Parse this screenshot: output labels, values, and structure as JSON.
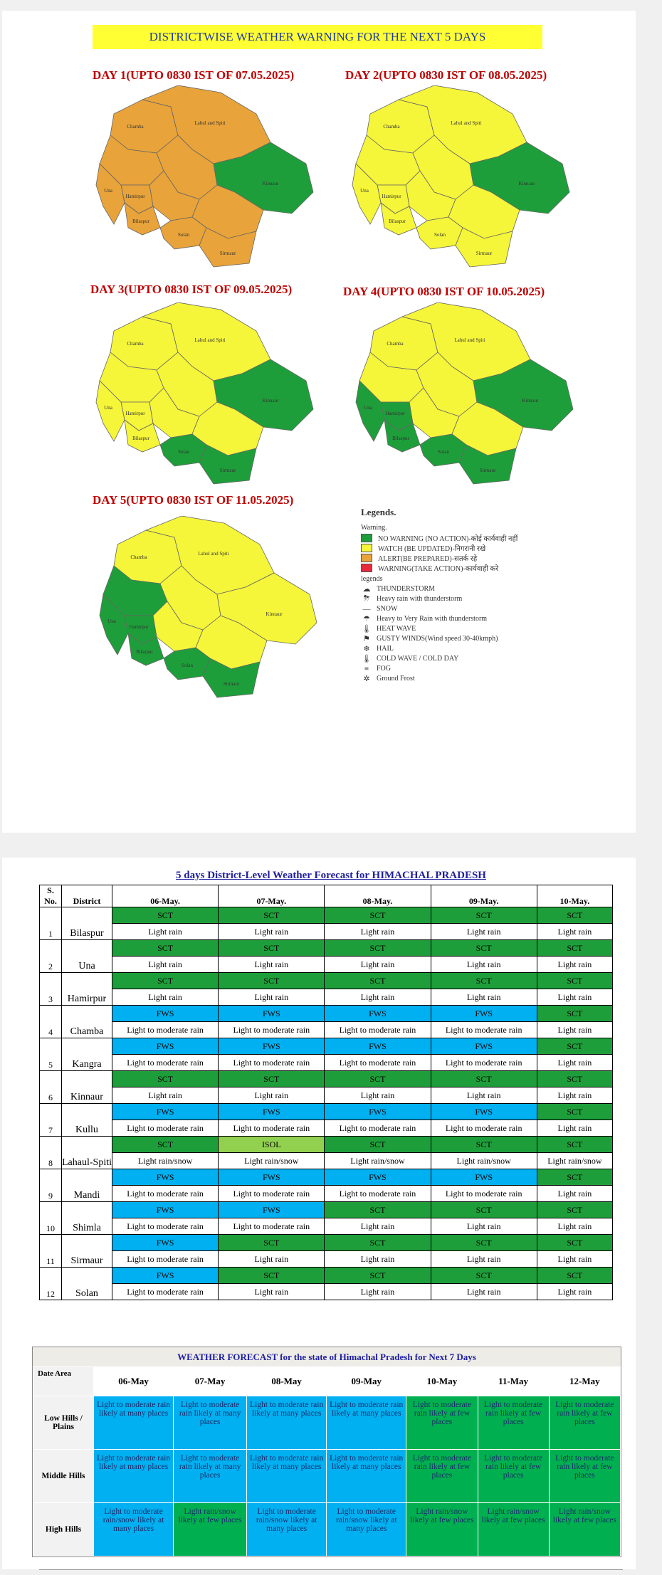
{
  "header": {
    "title": "DISTRICTWISE WEATHER WARNING FOR THE NEXT 5 DAYS"
  },
  "colors": {
    "green": "#1e9e3a",
    "yellow": "#f5f53a",
    "orange": "#e8a33a",
    "red": "#e82a3a",
    "fws_blue": "#00b0f0",
    "isol": "#92d050"
  },
  "maps": [
    {
      "title": "DAY 1(UPTO 0830 IST OF 07.05.2025)",
      "fill": {
        "Chamba": "orange",
        "Lahaul": "orange",
        "Kangra": "orange",
        "Kullu": "orange",
        "Kinnaur": "green",
        "Mandi": "orange",
        "Hamirpur": "orange",
        "Una": "orange",
        "Bilaspur": "orange",
        "Shimla": "orange",
        "Solan": "orange",
        "Sirmaur": "orange"
      }
    },
    {
      "title": "DAY 2(UPTO 0830 IST OF 08.05.2025)",
      "fill": {
        "Chamba": "yellow",
        "Lahaul": "yellow",
        "Kangra": "yellow",
        "Kullu": "yellow",
        "Kinnaur": "green",
        "Mandi": "yellow",
        "Hamirpur": "yellow",
        "Una": "yellow",
        "Bilaspur": "yellow",
        "Shimla": "yellow",
        "Solan": "yellow",
        "Sirmaur": "yellow"
      }
    },
    {
      "title": "DAY 3(UPTO 0830 IST OF 09.05.2025)",
      "fill": {
        "Chamba": "yellow",
        "Lahaul": "yellow",
        "Kangra": "yellow",
        "Kullu": "yellow",
        "Kinnaur": "green",
        "Mandi": "yellow",
        "Hamirpur": "yellow",
        "Una": "yellow",
        "Bilaspur": "yellow",
        "Shimla": "yellow",
        "Solan": "green",
        "Sirmaur": "green"
      }
    },
    {
      "title": "DAY 4(UPTO 0830 IST OF 10.05.2025)",
      "fill": {
        "Chamba": "yellow",
        "Lahaul": "yellow",
        "Kangra": "yellow",
        "Kullu": "yellow",
        "Kinnaur": "green",
        "Mandi": "yellow",
        "Hamirpur": "green",
        "Una": "green",
        "Bilaspur": "green",
        "Shimla": "yellow",
        "Solan": "green",
        "Sirmaur": "green"
      }
    },
    {
      "title": "DAY 5(UPTO 0830 IST OF 11.05.2025)",
      "fill": {
        "Chamba": "yellow",
        "Lahaul": "yellow",
        "Kangra": "green",
        "Kullu": "yellow",
        "Kinnaur": "yellow",
        "Mandi": "yellow",
        "Hamirpur": "green",
        "Una": "green",
        "Bilaspur": "green",
        "Shimla": "yellow",
        "Solan": "green",
        "Sirmaur": "green"
      }
    }
  ],
  "map_labels": {
    "Lahaul": "Lahul and Spiti",
    "Kinnaur": "Kinnaur",
    "Solan": "Solan",
    "Sirmaur": "Sirmaur",
    "Chamba": "Chamba",
    "Una": "Una",
    "Hamirpur": "Hamirpur",
    "Bilaspur": "Bilaspur"
  },
  "legend": {
    "title": "Legends.",
    "warning_heading": "Warning.",
    "warnings": [
      {
        "color": "green",
        "label": "NO WARNING (NO ACTION)-कोई कार्यवाही नहीं"
      },
      {
        "color": "yellow",
        "label": "WATCH (BE UPDATED)-निगरानी रखे"
      },
      {
        "color": "orange",
        "label": "ALERT(BE PREPARED)-सतर्क रहे"
      },
      {
        "color": "red",
        "label": "WARNING(TAKE ACTION)-कार्यवाही करे"
      }
    ],
    "legends_heading": "legends",
    "symbols": [
      {
        "icon": "thunderstorm-icon",
        "glyph": "☁",
        "label": "THUNDERSTORM"
      },
      {
        "icon": "heavy-rain-thunderstorm-icon",
        "glyph": "⛈",
        "label": "Heavy rain with thunderstorm"
      },
      {
        "icon": "snow-icon",
        "glyph": "—",
        "label": "SNOW"
      },
      {
        "icon": "very-heavy-rain-icon",
        "glyph": "☂",
        "label": "Heavy to Very Rain with thunderstorm"
      },
      {
        "icon": "heat-wave-icon",
        "glyph": "🌡",
        "label": "HEAT WAVE"
      },
      {
        "icon": "gusty-winds-icon",
        "glyph": "⚑",
        "label": "GUSTY WINDS(Wind speed 30-40kmph)"
      },
      {
        "icon": "hail-icon",
        "glyph": "❄",
        "label": "HAIL"
      },
      {
        "icon": "cold-wave-icon",
        "glyph": "🌡",
        "label": "COLD WAVE / COLD DAY"
      },
      {
        "icon": "fog-icon",
        "glyph": "≡",
        "label": "FOG"
      },
      {
        "icon": "ground-frost-icon",
        "glyph": "✲",
        "label": "Ground Frost"
      }
    ]
  },
  "district_table": {
    "title": "5 days District-Level Weather Forecast for HIMACHAL PRADESH",
    "headers": [
      "S. No.",
      "District",
      "06-May.",
      "07-May.",
      "08-May.",
      "09-May.",
      "10-May."
    ],
    "rows": [
      {
        "no": "1",
        "district": "Bilaspur",
        "codes": [
          "SCT",
          "SCT",
          "SCT",
          "SCT",
          "SCT"
        ],
        "text": [
          "Light rain",
          "Light rain",
          "Light rain",
          "Light rain",
          "Light rain"
        ]
      },
      {
        "no": "2",
        "district": "Una",
        "codes": [
          "SCT",
          "SCT",
          "SCT",
          "SCT",
          "SCT"
        ],
        "text": [
          "Light rain",
          "Light rain",
          "Light rain",
          "Light rain",
          "Light rain"
        ]
      },
      {
        "no": "3",
        "district": "Hamirpur",
        "codes": [
          "SCT",
          "SCT",
          "SCT",
          "SCT",
          "SCT"
        ],
        "text": [
          "Light rain",
          "Light rain",
          "Light rain",
          "Light rain",
          "Light rain"
        ]
      },
      {
        "no": "4",
        "district": "Chamba",
        "codes": [
          "FWS",
          "FWS",
          "FWS",
          "FWS",
          "SCT"
        ],
        "text": [
          "Light to moderate rain",
          "Light to moderate rain",
          "Light to moderate rain",
          "Light to moderate rain",
          "Light rain"
        ]
      },
      {
        "no": "5",
        "district": "Kangra",
        "codes": [
          "FWS",
          "FWS",
          "FWS",
          "FWS",
          "SCT"
        ],
        "text": [
          "Light to moderate rain",
          "Light to moderate rain",
          "Light to moderate rain",
          "Light to moderate rain",
          "Light rain"
        ]
      },
      {
        "no": "6",
        "district": "Kinnaur",
        "codes": [
          "SCT",
          "SCT",
          "SCT",
          "SCT",
          "SCT"
        ],
        "text": [
          "Light rain",
          "Light rain",
          "Light rain",
          "Light rain",
          "Light rain"
        ]
      },
      {
        "no": "7",
        "district": "Kullu",
        "codes": [
          "FWS",
          "FWS",
          "FWS",
          "FWS",
          "SCT"
        ],
        "text": [
          "Light to moderate rain",
          "Light to moderate rain",
          "Light to moderate rain",
          "Light to moderate rain",
          "Light rain"
        ]
      },
      {
        "no": "8",
        "district": "Lahaul-Spiti",
        "codes": [
          "SCT",
          "ISOL",
          "SCT",
          "SCT",
          "SCT"
        ],
        "text": [
          "Light rain/snow",
          "Light rain/snow",
          "Light rain/snow",
          "Light rain/snow",
          "Light rain/snow"
        ]
      },
      {
        "no": "9",
        "district": "Mandi",
        "codes": [
          "FWS",
          "FWS",
          "FWS",
          "FWS",
          "SCT"
        ],
        "text": [
          "Light to moderate rain",
          "Light to moderate rain",
          "Light to moderate rain",
          "Light to moderate rain",
          "Light rain"
        ]
      },
      {
        "no": "10",
        "district": "Shimla",
        "codes": [
          "FWS",
          "FWS",
          "SCT",
          "SCT",
          "SCT"
        ],
        "text": [
          "Light to moderate rain",
          "Light to moderate rain",
          "Light rain",
          "Light rain",
          "Light rain"
        ]
      },
      {
        "no": "11",
        "district": "Sirmaur",
        "codes": [
          "FWS",
          "SCT",
          "SCT",
          "SCT",
          "SCT"
        ],
        "text": [
          "Light to moderate rain",
          "Light rain",
          "Light rain",
          "Light rain",
          "Light rain"
        ]
      },
      {
        "no": "12",
        "district": "Solan",
        "codes": [
          "FWS",
          "SCT",
          "SCT",
          "SCT",
          "SCT"
        ],
        "text": [
          "Light to moderate rain",
          "Light rain",
          "Light rain",
          "Light rain",
          "Light rain"
        ]
      }
    ]
  },
  "state_table": {
    "title": "WEATHER FORECAST for the state of Himachal Pradesh for Next 7 Days",
    "corner_date": "Date",
    "corner_area": "Area",
    "dates": [
      "06-May",
      "07-May",
      "08-May",
      "09-May",
      "10-May",
      "11-May",
      "12-May"
    ],
    "rows": [
      {
        "area": "Low Hills / Plains",
        "cells": [
          {
            "t": "Light to moderate rain likely at many places",
            "c": "blue"
          },
          {
            "t": "Light to moderate rain likely at many places",
            "c": "blue"
          },
          {
            "t": "Light to moderate rain likely at many places",
            "c": "blue"
          },
          {
            "t": "Light to moderate rain likely at many places",
            "c": "blue"
          },
          {
            "t": "Light to moderate rain likely at few places",
            "c": "green"
          },
          {
            "t": "Light to moderate rain likely at few places",
            "c": "green"
          },
          {
            "t": "Light to moderate rain likely at few places",
            "c": "green"
          }
        ]
      },
      {
        "area": "Middle Hills",
        "cells": [
          {
            "t": "Light to moderate rain likely at many places",
            "c": "blue"
          },
          {
            "t": "Light to moderate rain likely at many places",
            "c": "blue"
          },
          {
            "t": "Light to moderate rain likely at many places",
            "c": "blue"
          },
          {
            "t": "Light to moderate rain likely at many places",
            "c": "blue"
          },
          {
            "t": "Light to moderate rain likely at few places",
            "c": "green"
          },
          {
            "t": "Light to moderate rain likely at few places",
            "c": "green"
          },
          {
            "t": "Light to moderate rain likely at few places",
            "c": "green"
          }
        ]
      },
      {
        "area": "High Hills",
        "cells": [
          {
            "t": "Light to moderate rain/snow likely at many places",
            "c": "blue"
          },
          {
            "t": "Light rain/snow likely at few places",
            "c": "green"
          },
          {
            "t": "Light to moderate rain/snow likely at many places",
            "c": "blue"
          },
          {
            "t": "Light to moderate rain/snow likely at many places",
            "c": "blue"
          },
          {
            "t": "Light rain/snow likely at few places",
            "c": "green"
          },
          {
            "t": "Light rain/snow likely at few places",
            "c": "green"
          },
          {
            "t": "Light rain/snow likely at few places",
            "c": "green"
          }
        ]
      }
    ]
  }
}
